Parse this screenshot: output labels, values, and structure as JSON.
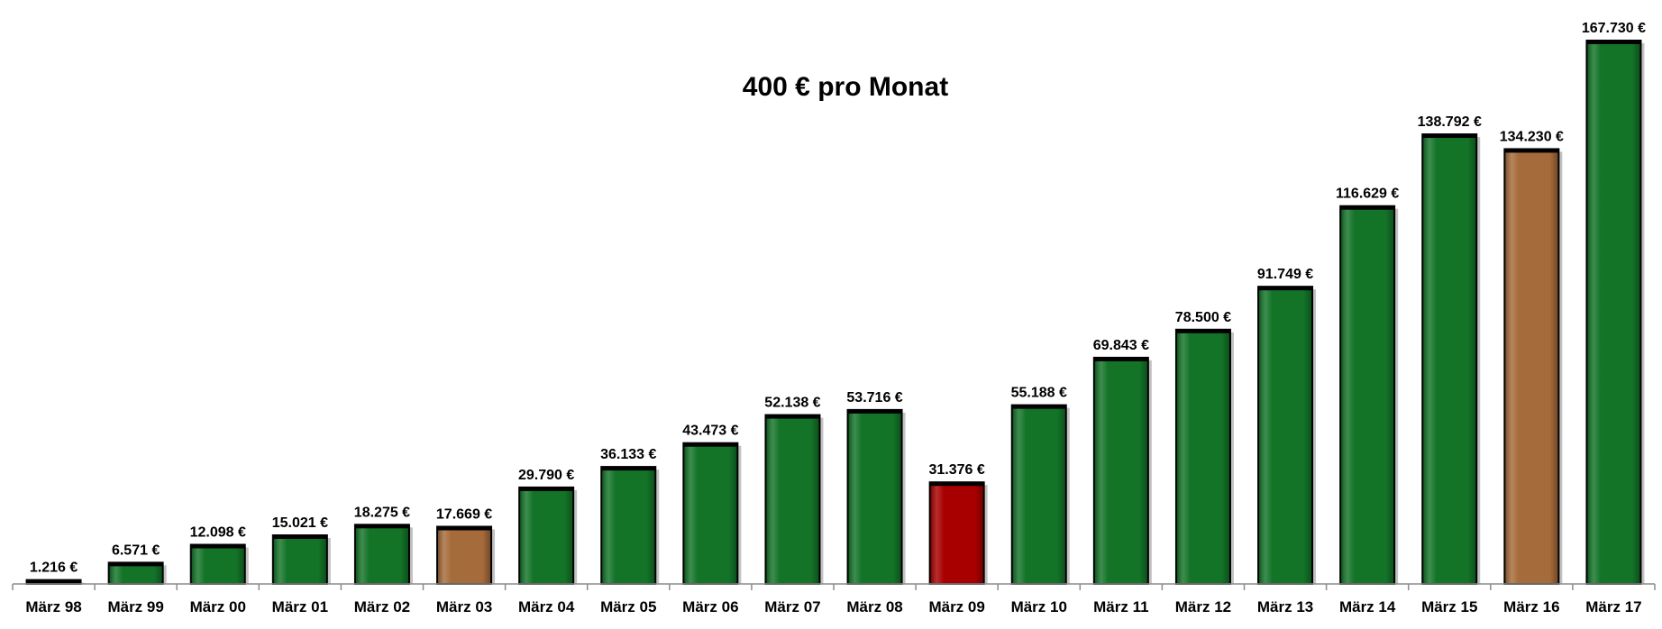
{
  "chart_data": {
    "type": "bar",
    "title": "400 € pro Monat",
    "xlabel": "",
    "ylabel": "",
    "categories": [
      "März 98",
      "März 99",
      "März 00",
      "März 01",
      "März 02",
      "März 03",
      "März 04",
      "März 05",
      "März 06",
      "März 07",
      "März 08",
      "März 09",
      "März 10",
      "März 11",
      "März 12",
      "März 13",
      "März 14",
      "März 15",
      "März 16",
      "März 17"
    ],
    "values": [
      1216,
      6571,
      12098,
      15021,
      18275,
      17669,
      29790,
      36133,
      43473,
      52138,
      53716,
      31376,
      55188,
      69843,
      78500,
      91749,
      116629,
      138792,
      134230,
      167730
    ],
    "value_labels": [
      "1.216 €",
      "6.571 €",
      "12.098 €",
      "15.021 €",
      "18.275 €",
      "17.669 €",
      "29.790 €",
      "36.133 €",
      "43.473 €",
      "52.138 €",
      "53.716 €",
      "31.376 €",
      "55.188 €",
      "69.843 €",
      "78.500 €",
      "91.749 €",
      "116.629 €",
      "138.792 €",
      "134.230 €",
      "167.730 €"
    ],
    "bar_colors": [
      "#137428",
      "#137428",
      "#137428",
      "#137428",
      "#137428",
      "#a66b3a",
      "#137428",
      "#137428",
      "#137428",
      "#137428",
      "#137428",
      "#a80000",
      "#137428",
      "#137428",
      "#137428",
      "#137428",
      "#137428",
      "#137428",
      "#a66b3a",
      "#137428"
    ],
    "ylim": [
      0,
      167730
    ],
    "grid": false,
    "legend": "none"
  }
}
